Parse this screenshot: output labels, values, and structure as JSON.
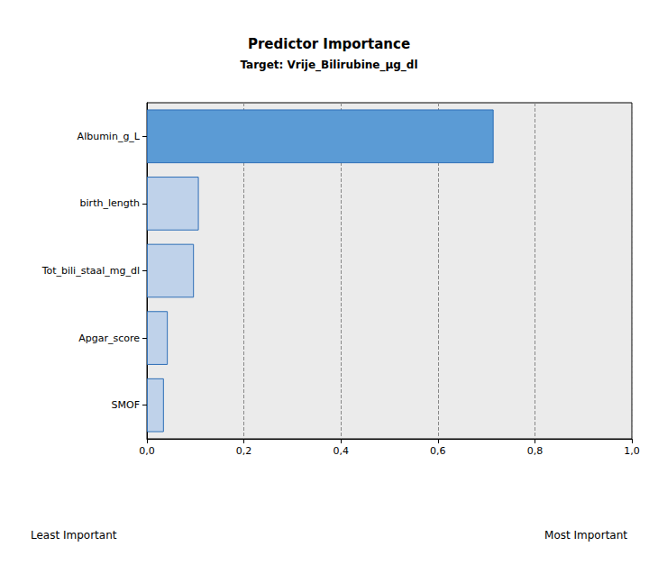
{
  "chart_data": {
    "type": "bar",
    "title": "Predictor Importance",
    "subtitle": "Target: Vrije_Bilirubine_µg_dl",
    "orientation": "horizontal",
    "categories": [
      "Albumin_g_L",
      "birth_length",
      "Tot_bili_staal_mg_dl",
      "Apgar_score",
      "SMOF"
    ],
    "values": [
      0.715,
      0.107,
      0.097,
      0.043,
      0.035
    ],
    "colors": [
      "#5b9bd5",
      "#bfd2ea",
      "#bfd2ea",
      "#bfd2ea",
      "#bfd2ea"
    ],
    "xlim": [
      0,
      1
    ],
    "xticks": [
      {
        "value": 0,
        "label": "0,0"
      },
      {
        "value": 0.2,
        "label": "0,2"
      },
      {
        "value": 0.4,
        "label": "0,4"
      },
      {
        "value": 0.6,
        "label": "0,6"
      },
      {
        "value": 0.8,
        "label": "0,8"
      },
      {
        "value": 1,
        "label": "1,0"
      }
    ],
    "grid": true,
    "annotations": [
      "Least Important",
      "Most Important"
    ]
  }
}
